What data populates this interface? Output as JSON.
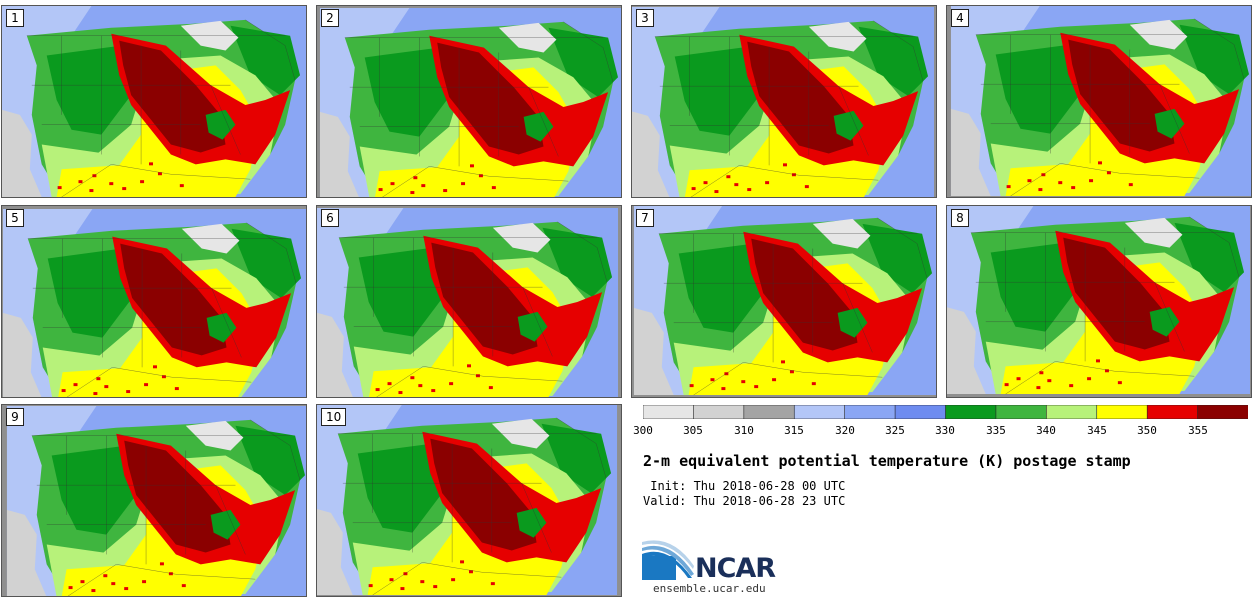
{
  "panels": [
    {
      "label": "1"
    },
    {
      "label": "2"
    },
    {
      "label": "3"
    },
    {
      "label": "4"
    },
    {
      "label": "5"
    },
    {
      "label": "6"
    },
    {
      "label": "7"
    },
    {
      "label": "8"
    },
    {
      "label": "9"
    },
    {
      "label": "10"
    }
  ],
  "colorbar": {
    "ticks": [
      "300",
      "305",
      "310",
      "315",
      "320",
      "325",
      "330",
      "335",
      "340",
      "345",
      "350",
      "355"
    ],
    "colors": [
      "#e6e6e6",
      "#d2d2d2",
      "#a4a4a4",
      "#b3c6f7",
      "#8aa6f4",
      "#6e8cf0",
      "#0a9a1e",
      "#3fb53f",
      "#b7f27a",
      "#ffff00",
      "#e60000",
      "#8b0000"
    ]
  },
  "title": "2-m equivalent potential temperature (K) postage stamp",
  "init": " Init: Thu 2018-06-28 00 UTC",
  "valid": "Valid: Thu 2018-06-28 23 UTC",
  "logo": {
    "text": "NCAR",
    "url": "ensemble.ucar.edu"
  }
}
